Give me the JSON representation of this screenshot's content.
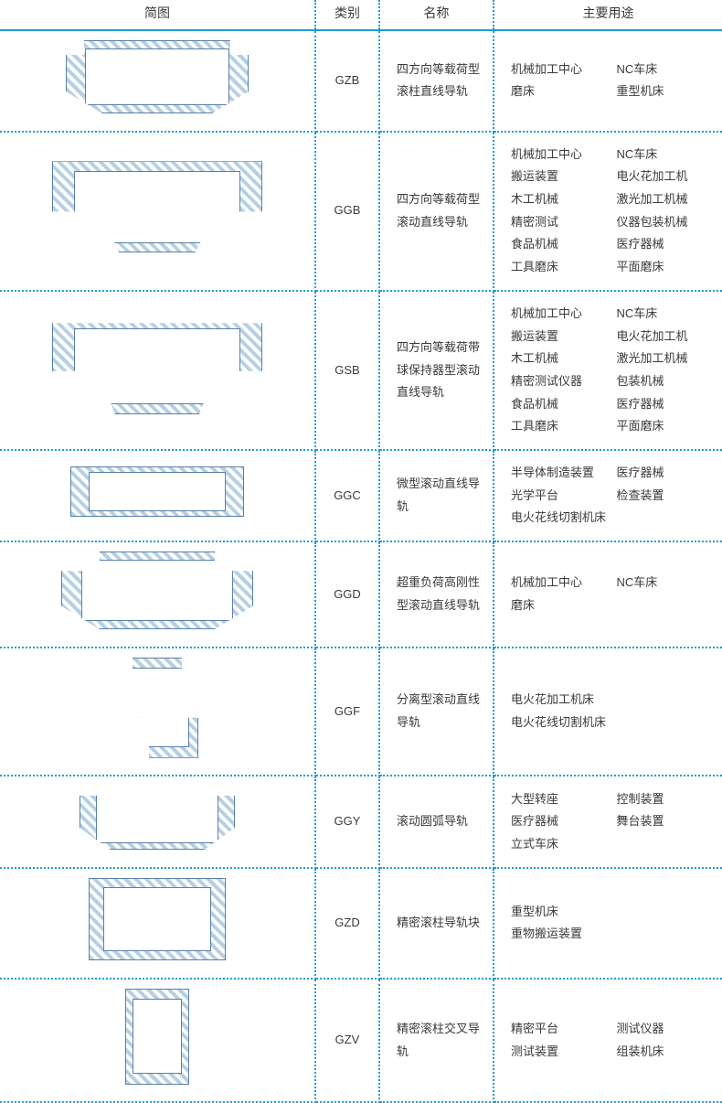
{
  "headers": {
    "diagram": "简图",
    "category": "类别",
    "name": "名称",
    "use": "主要用途"
  },
  "colors": {
    "accent": "#1f9dd0",
    "diagram_stroke": "#5a7fa8",
    "diagram_hatch": "#b6d0e3",
    "text": "#3a3a3a",
    "bg": "#ffffff"
  },
  "rows": [
    {
      "diagram_shape": "d-gzb",
      "category": "GZB",
      "name": "四方向等载荷型滚柱直线导轨",
      "uses_layout": "grid",
      "uses": [
        "机械加工中心",
        "NC车床",
        "磨床",
        "重型机床"
      ]
    },
    {
      "diagram_shape": "d-ggb",
      "category": "GGB",
      "name": "四方向等载荷型滚动直线导轨",
      "uses_layout": "grid",
      "uses": [
        "机械加工中心",
        "NC车床",
        "搬运装置",
        "电火花加工机",
        "木工机械",
        "激光加工机械",
        "精密测试",
        "仪器包装机械",
        "食品机械",
        "医疗器械",
        "工具磨床",
        "平面磨床"
      ]
    },
    {
      "diagram_shape": "d-gsb",
      "category": "GSB",
      "name": "四方向等载荷带球保持器型滚动直线导轨",
      "uses_layout": "grid",
      "uses": [
        "机械加工中心",
        "NC车床",
        "搬运装置",
        "电火花加工机",
        "木工机械",
        "激光加工机械",
        "精密测试仪器",
        "包装机械",
        "食品机械",
        "医疗器械",
        "工具磨床",
        "平面磨床"
      ]
    },
    {
      "diagram_shape": "d-ggc",
      "category": "GGC",
      "name": "微型滚动直线导轨",
      "uses_layout": "grid",
      "uses": [
        "半导体制造装置",
        "医疗器械",
        "光学平台",
        "检查装置",
        "电火花线切割机床",
        ""
      ]
    },
    {
      "diagram_shape": "d-ggd",
      "category": "GGD",
      "name": "超重负荷高刚性型滚动直线导轨",
      "uses_layout": "grid",
      "uses": [
        "机械加工中心",
        "NC车床",
        "磨床",
        ""
      ]
    },
    {
      "diagram_shape": "d-ggf",
      "category": "GGF",
      "name": "分离型滚动直线导轨",
      "uses_layout": "list",
      "uses": [
        "电火花加工机床",
        "电火花线切割机床"
      ]
    },
    {
      "diagram_shape": "d-ggy",
      "category": "GGY",
      "name": "滚动圆弧导轨",
      "uses_layout": "grid",
      "uses": [
        "大型转座",
        "控制装置",
        "医疗器械",
        "舞台装置",
        "立式车床",
        ""
      ]
    },
    {
      "diagram_shape": "d-gzd",
      "category": "GZD",
      "name": "精密滚柱导轨块",
      "uses_layout": "list",
      "uses": [
        "重型机床",
        "重物搬运装置"
      ]
    },
    {
      "diagram_shape": "d-gzv",
      "category": "GZV",
      "name": "精密滚柱交叉导轨",
      "uses_layout": "grid",
      "uses": [
        "精密平台",
        "测试仪器",
        "测试装置",
        "组装机床"
      ]
    }
  ]
}
